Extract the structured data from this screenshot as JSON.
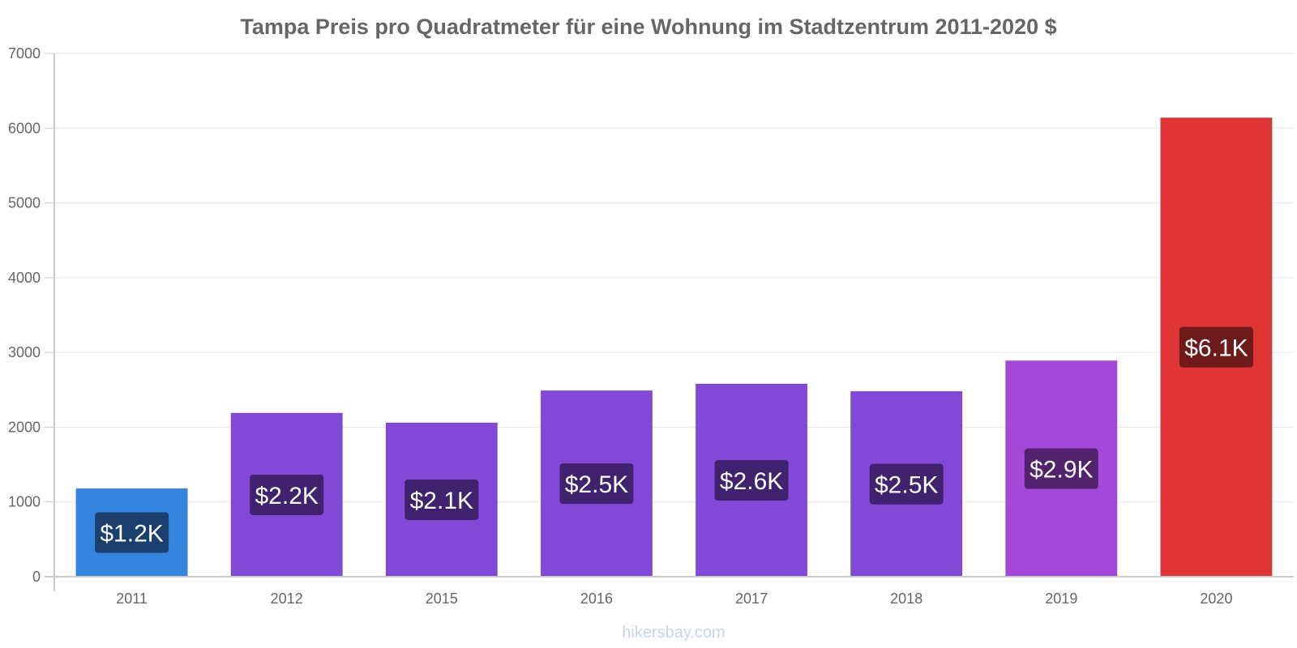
{
  "chart_data": {
    "type": "bar",
    "title": "Tampa Preis pro Quadratmeter für eine Wohnung im Stadtzentrum 2011-2020 $",
    "categories": [
      "2011",
      "2012",
      "2015",
      "2016",
      "2017",
      "2018",
      "2019",
      "2020"
    ],
    "values": [
      1180,
      2190,
      2060,
      2490,
      2580,
      2480,
      2890,
      6140
    ],
    "data_labels": [
      "$1.2K",
      "$2.2K",
      "$2.1K",
      "$2.5K",
      "$2.6K",
      "$2.5K",
      "$2.9K",
      "$6.1K"
    ],
    "bar_colors": [
      "#3584e0",
      "#8249d9",
      "#8249d9",
      "#8249d9",
      "#8249d9",
      "#8249d9",
      "#a348d9",
      "#e03537"
    ],
    "label_colors": [
      "#1c3f6e",
      "#40226e",
      "#40226e",
      "#40226e",
      "#40226e",
      "#40226e",
      "#53226e",
      "#6e1a1b"
    ],
    "ylim": [
      0,
      7000
    ],
    "yticks": [
      0,
      1000,
      2000,
      3000,
      4000,
      5000,
      6000,
      7000
    ],
    "xlabel": "",
    "ylabel": "",
    "grid": true
  },
  "footer": {
    "watermark": "hikersbay.com"
  }
}
